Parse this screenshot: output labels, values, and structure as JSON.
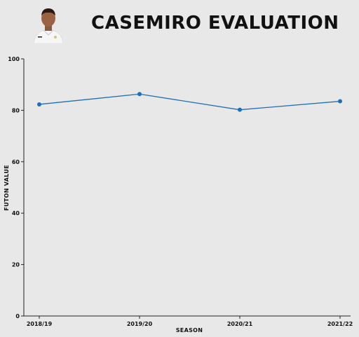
{
  "title": "CASEMIRO EVALUATION",
  "colors": {
    "background": "#e8e8e8",
    "line": "#1f6fb4",
    "axis": "#222222"
  },
  "chart_data": {
    "type": "line",
    "title": "CASEMIRO EVALUATION",
    "xlabel": "SEASON",
    "ylabel": "FUTON VALUE",
    "categories": [
      "2018/19",
      "2019/20",
      "2020/21",
      "2021/22"
    ],
    "series": [
      {
        "values": [
          82.3,
          86.3,
          80.2,
          83.5
        ]
      }
    ],
    "ylim": [
      0,
      100
    ],
    "yticks": [
      0,
      20,
      40,
      60,
      80,
      100
    ],
    "grid": false,
    "legend": "none"
  }
}
